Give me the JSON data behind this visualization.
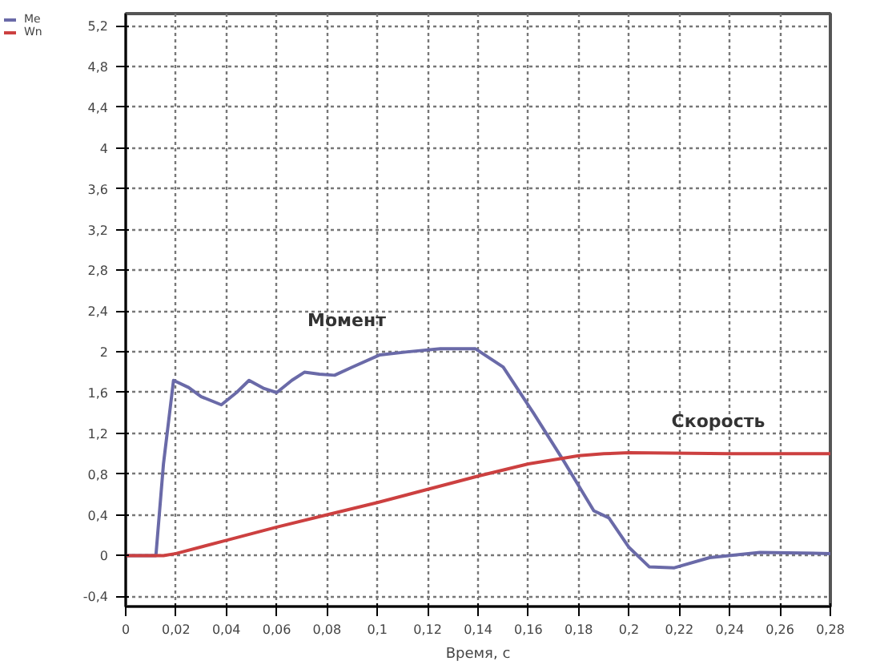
{
  "chart_data": {
    "type": "line",
    "xlabel": "Время, с",
    "xlim": [
      0,
      0.28
    ],
    "ylim": [
      -0.5,
      5.32
    ],
    "xticks": [
      0,
      {
        "value": 0.02,
        "label": "0,02"
      },
      {
        "value": 0.04,
        "label": "0,04"
      },
      {
        "value": 0.06,
        "label": "0,06"
      },
      {
        "value": 0.08,
        "label": "0,08"
      },
      {
        "value": 0.1,
        "label": "0,1"
      },
      {
        "value": 0.12,
        "label": "0,12"
      },
      {
        "value": 0.14,
        "label": "0,14"
      },
      {
        "value": 0.16,
        "label": "0,16"
      },
      {
        "value": 0.18,
        "label": "0,18"
      },
      {
        "value": 0.2,
        "label": "0,2"
      },
      {
        "value": 0.22,
        "label": "0,22"
      },
      {
        "value": 0.24,
        "label": "0,24"
      },
      {
        "value": 0.26,
        "label": "0,26"
      },
      {
        "value": 0.28,
        "label": "0,28"
      }
    ],
    "yticks": [
      {
        "value": -0.4,
        "label": "-0,4"
      },
      0,
      {
        "value": 0.4,
        "label": "0,4"
      },
      {
        "value": 0.8,
        "label": "0,8"
      },
      {
        "value": 1.2,
        "label": "1,2"
      },
      {
        "value": 1.6,
        "label": "1,6"
      },
      2,
      {
        "value": 2.4,
        "label": "2,4"
      },
      {
        "value": 2.8,
        "label": "2,8"
      },
      {
        "value": 3.2,
        "label": "3,2"
      },
      {
        "value": 3.6,
        "label": "3,6"
      },
      4,
      {
        "value": 4.4,
        "label": "4,4"
      },
      {
        "value": 4.8,
        "label": "4,8"
      },
      {
        "value": 5.2,
        "label": "5,2"
      }
    ],
    "grid": true,
    "legend": "left",
    "line_style": "solid",
    "annotations": [
      "Момент",
      "Скорость"
    ],
    "series": [
      {
        "name": "Me",
        "color": "#6a6aa8",
        "x": [
          0,
          0.012,
          0.015,
          0.019,
          0.025,
          0.03,
          0.038,
          0.044,
          0.049,
          0.055,
          0.06,
          0.066,
          0.071,
          0.077,
          0.083,
          0.09,
          0.101,
          0.112,
          0.125,
          0.139,
          0.15,
          0.162,
          0.174,
          0.186,
          0.192,
          0.2,
          0.208,
          0.218,
          0.232,
          0.252,
          0.28
        ],
        "values": [
          0,
          0,
          0.9,
          1.72,
          1.65,
          1.56,
          1.48,
          1.6,
          1.72,
          1.64,
          1.6,
          1.72,
          1.8,
          1.78,
          1.77,
          1.85,
          1.97,
          2.0,
          2.03,
          2.03,
          1.85,
          1.4,
          0.93,
          0.44,
          0.37,
          0.08,
          -0.11,
          -0.12,
          -0.02,
          0.03,
          0.02
        ]
      },
      {
        "name": "Wn",
        "color": "#cc4040",
        "x": [
          0,
          0.015,
          0.02,
          0.04,
          0.06,
          0.08,
          0.1,
          0.12,
          0.14,
          0.16,
          0.18,
          0.19,
          0.2,
          0.24,
          0.28
        ],
        "values": [
          0,
          0,
          0.02,
          0.15,
          0.28,
          0.4,
          0.52,
          0.65,
          0.78,
          0.9,
          0.98,
          1.0,
          1.01,
          1.0,
          1.0
        ]
      }
    ]
  }
}
